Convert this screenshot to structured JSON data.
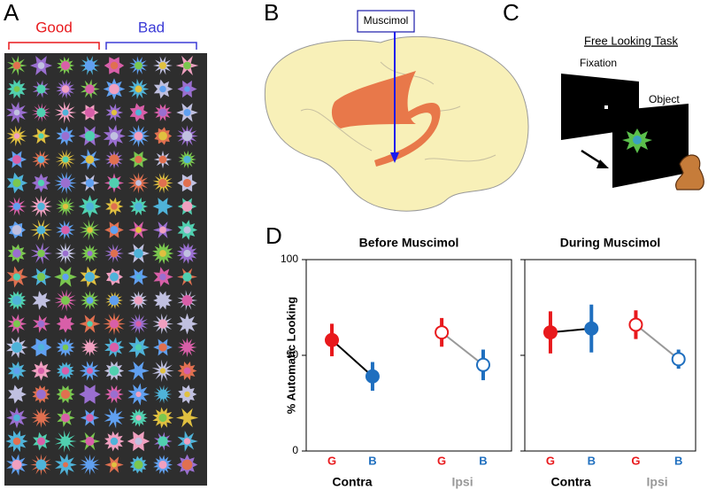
{
  "panels": {
    "A": {
      "label": "A",
      "good": "Good",
      "bad": "Bad"
    },
    "B": {
      "label": "B",
      "drug": "Muscimol"
    },
    "C": {
      "label": "C",
      "title": "Free Looking Task",
      "fixation": "Fixation",
      "object": "Object"
    },
    "D": {
      "label": "D"
    }
  },
  "chart_data": [
    {
      "type": "dot-line",
      "title": "Before Muscimol",
      "ylabel": "% Automatic Looking",
      "categories": [
        "G",
        "B",
        "G",
        "B"
      ],
      "values": [
        58,
        39,
        62,
        45
      ],
      "errors": [
        8.5,
        7.5,
        7.5,
        8
      ],
      "colors": [
        "#e8191c",
        "#1f6fbf",
        "#e8191c",
        "#1f6fbf"
      ],
      "filled": [
        true,
        true,
        false,
        false
      ],
      "groups": [
        "Contra",
        "Ipsi"
      ],
      "group_colors": [
        "#000000",
        "#999999"
      ],
      "ylim": [
        0,
        100
      ],
      "yticks": [
        0,
        50,
        100
      ]
    },
    {
      "type": "dot-line",
      "title": "During Muscimol",
      "categories": [
        "G",
        "B",
        "G",
        "B"
      ],
      "values": [
        62,
        64,
        66,
        48
      ],
      "errors": [
        11,
        12.5,
        7.5,
        5
      ],
      "colors": [
        "#e8191c",
        "#1f6fbf",
        "#e8191c",
        "#1f6fbf"
      ],
      "filled": [
        true,
        true,
        false,
        false
      ],
      "groups": [
        "Contra",
        "Ipsi"
      ],
      "group_colors": [
        "#000000",
        "#999999"
      ],
      "ylim": [
        0,
        100
      ],
      "yticks": [
        0,
        50,
        100
      ]
    }
  ]
}
